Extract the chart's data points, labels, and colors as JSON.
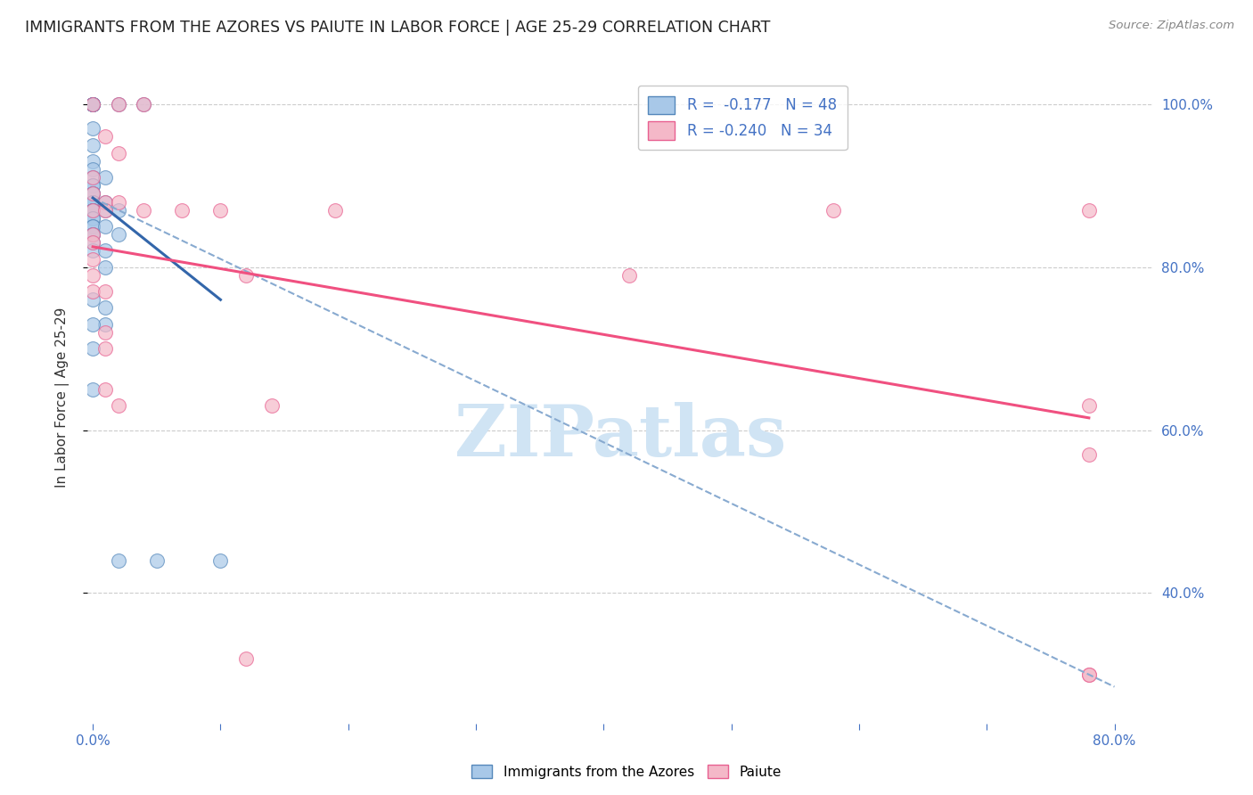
{
  "title": "IMMIGRANTS FROM THE AZORES VS PAIUTE IN LABOR FORCE | AGE 25-29 CORRELATION CHART",
  "source": "Source: ZipAtlas.com",
  "ylabel": "In Labor Force | Age 25-29",
  "blue_color": "#a8c8e8",
  "pink_color": "#f4b8c8",
  "blue_edge_color": "#5588bb",
  "pink_edge_color": "#e86090",
  "blue_line_color": "#3366aa",
  "pink_line_color": "#f05080",
  "dashed_color": "#88aad0",
  "background_color": "#ffffff",
  "grid_color": "#cccccc",
  "axis_color": "#4472c4",
  "title_color": "#222222",
  "source_color": "#888888",
  "watermark_color": "#d0e4f4",
  "xlim": [
    -0.004,
    0.83
  ],
  "ylim": [
    0.24,
    1.04
  ],
  "x_ticks": [
    0.0,
    0.1,
    0.2,
    0.3,
    0.4,
    0.5,
    0.6,
    0.7,
    0.8
  ],
  "x_tick_labels": [
    "0.0%",
    "",
    "",
    "",
    "",
    "",
    "",
    "",
    "80.0%"
  ],
  "y_ticks": [
    0.4,
    0.6,
    0.8,
    1.0
  ],
  "y_tick_labels": [
    "40.0%",
    "60.0%",
    "80.0%",
    "100.0%"
  ],
  "blue_scatter": [
    [
      0.0,
      1.0
    ],
    [
      0.0,
      1.0
    ],
    [
      0.0,
      1.0
    ],
    [
      0.0,
      1.0
    ],
    [
      0.0,
      1.0
    ],
    [
      0.02,
      1.0
    ],
    [
      0.0,
      0.97
    ],
    [
      0.0,
      0.95
    ],
    [
      0.0,
      0.93
    ],
    [
      0.0,
      0.92
    ],
    [
      0.0,
      0.91
    ],
    [
      0.0,
      0.9
    ],
    [
      0.0,
      0.9
    ],
    [
      0.0,
      0.89
    ],
    [
      0.0,
      0.89
    ],
    [
      0.0,
      0.88
    ],
    [
      0.0,
      0.88
    ],
    [
      0.0,
      0.88
    ],
    [
      0.0,
      0.87
    ],
    [
      0.0,
      0.87
    ],
    [
      0.0,
      0.87
    ],
    [
      0.0,
      0.86
    ],
    [
      0.0,
      0.86
    ],
    [
      0.0,
      0.85
    ],
    [
      0.0,
      0.85
    ],
    [
      0.0,
      0.84
    ],
    [
      0.0,
      0.84
    ],
    [
      0.0,
      0.83
    ],
    [
      0.0,
      0.82
    ],
    [
      0.01,
      0.91
    ],
    [
      0.01,
      0.88
    ],
    [
      0.01,
      0.87
    ],
    [
      0.01,
      0.85
    ],
    [
      0.02,
      0.87
    ],
    [
      0.01,
      0.82
    ],
    [
      0.01,
      0.8
    ],
    [
      0.01,
      0.75
    ],
    [
      0.01,
      0.73
    ],
    [
      0.02,
      0.84
    ],
    [
      0.0,
      0.76
    ],
    [
      0.0,
      0.73
    ],
    [
      0.0,
      0.7
    ],
    [
      0.0,
      0.65
    ],
    [
      0.02,
      0.44
    ],
    [
      0.04,
      1.0
    ],
    [
      0.05,
      0.44
    ],
    [
      0.1,
      0.44
    ]
  ],
  "pink_scatter": [
    [
      0.0,
      1.0
    ],
    [
      0.02,
      1.0
    ],
    [
      0.04,
      1.0
    ],
    [
      0.01,
      0.96
    ],
    [
      0.02,
      0.94
    ],
    [
      0.0,
      0.91
    ],
    [
      0.0,
      0.89
    ],
    [
      0.01,
      0.88
    ],
    [
      0.02,
      0.88
    ],
    [
      0.0,
      0.87
    ],
    [
      0.01,
      0.87
    ],
    [
      0.04,
      0.87
    ],
    [
      0.0,
      0.84
    ],
    [
      0.0,
      0.83
    ],
    [
      0.07,
      0.87
    ],
    [
      0.1,
      0.87
    ],
    [
      0.19,
      0.87
    ],
    [
      0.0,
      0.81
    ],
    [
      0.0,
      0.79
    ],
    [
      0.0,
      0.77
    ],
    [
      0.01,
      0.77
    ],
    [
      0.12,
      0.79
    ],
    [
      0.42,
      0.79
    ],
    [
      0.01,
      0.72
    ],
    [
      0.01,
      0.7
    ],
    [
      0.01,
      0.65
    ],
    [
      0.02,
      0.63
    ],
    [
      0.14,
      0.63
    ],
    [
      0.58,
      0.87
    ],
    [
      0.78,
      0.87
    ],
    [
      0.78,
      0.63
    ],
    [
      0.78,
      0.57
    ],
    [
      0.12,
      0.32
    ],
    [
      0.78,
      0.3
    ],
    [
      0.78,
      0.3
    ]
  ],
  "blue_solid_line": [
    [
      0.0,
      0.885
    ],
    [
      0.1,
      0.76
    ]
  ],
  "pink_solid_line": [
    [
      0.0,
      0.825
    ],
    [
      0.78,
      0.615
    ]
  ],
  "blue_dashed_line": [
    [
      0.0,
      0.885
    ],
    [
      0.8,
      0.285
    ]
  ]
}
